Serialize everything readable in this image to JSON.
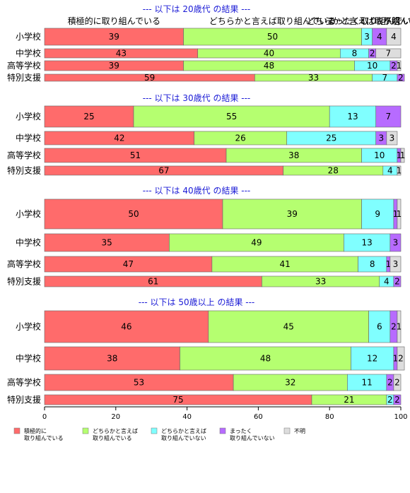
{
  "chart_data": {
    "type": "bar",
    "orientation": "horizontal",
    "stacked": true,
    "xlim": [
      0,
      100
    ],
    "x_ticks": [
      "0",
      "20",
      "40",
      "60",
      "80",
      "100"
    ],
    "top_headers": [
      "積極的に取り組んでいる",
      "どちらかと言えば取り組んでいる",
      "どちらかと言えば取り組んでいない",
      "まったく取り組んでいない",
      "不明"
    ],
    "legend": {
      "placement": "bottom",
      "entries": [
        {
          "label_line1": "積極的に",
          "label_line2": "取り組んでいる"
        },
        {
          "label_line1": "どちらかと言えば",
          "label_line2": "取り組んでいる"
        },
        {
          "label_line1": "どちらかと言えば",
          "label_line2": "取り組んでいない"
        },
        {
          "label_line1": "まったく",
          "label_line2": "取り組んでいない"
        },
        {
          "label_line1": "不明",
          "label_line2": ""
        }
      ]
    },
    "colors": [
      "#ff6b6b",
      "#b5ff70",
      "#80ffff",
      "#b76bff",
      "#dddddd"
    ],
    "groups": [
      {
        "title": "--- 以下は 20歳代 の結果 ---",
        "rows": [
          {
            "label": "小学校",
            "values": [
              39,
              50,
              3,
              4,
              4
            ],
            "value_labels": [
              "39",
              "50",
              "3",
              "4",
              "4"
            ]
          },
          {
            "label": "中学校",
            "values": [
              43,
              40,
              8,
              2,
              7
            ],
            "value_labels": [
              "43",
              "40",
              "8",
              "2",
              "7"
            ]
          },
          {
            "label": "高等学校",
            "values": [
              39,
              48,
              10,
              2,
              1
            ],
            "value_labels": [
              "39",
              "48",
              "10",
              "2",
              "1"
            ]
          },
          {
            "label": "特別支援",
            "values": [
              59,
              33,
              7,
              2,
              0
            ],
            "value_labels": [
              "59",
              "33",
              "7",
              "2",
              ""
            ]
          }
        ]
      },
      {
        "title": "--- 以下は 30歳代 の結果 ---",
        "rows": [
          {
            "label": "小学校",
            "values": [
              25,
              55,
              13,
              7,
              0
            ],
            "value_labels": [
              "25",
              "55",
              "13",
              "7",
              ""
            ]
          },
          {
            "label": "中学校",
            "values": [
              42,
              26,
              25,
              3,
              3
            ],
            "value_labels": [
              "42",
              "26",
              "25",
              "3",
              "3"
            ]
          },
          {
            "label": "高等学校",
            "values": [
              51,
              38,
              10,
              1,
              1
            ],
            "value_labels": [
              "51",
              "38",
              "10",
              "1",
              "1"
            ]
          },
          {
            "label": "特別支援",
            "values": [
              67,
              28,
              4,
              0,
              1
            ],
            "value_labels": [
              "67",
              "28",
              "4",
              "",
              "1"
            ]
          }
        ]
      },
      {
        "title": "--- 以下は 40歳代 の結果 ---",
        "rows": [
          {
            "label": "小学校",
            "values": [
              50,
              39,
              9,
              1,
              1
            ],
            "value_labels": [
              "50",
              "39",
              "9",
              "1",
              "1"
            ]
          },
          {
            "label": "中学校",
            "values": [
              35,
              49,
              13,
              3,
              0
            ],
            "value_labels": [
              "35",
              "49",
              "13",
              "3",
              ""
            ]
          },
          {
            "label": "高等学校",
            "values": [
              47,
              41,
              8,
              1,
              3
            ],
            "value_labels": [
              "47",
              "41",
              "8",
              "1",
              "3"
            ]
          },
          {
            "label": "特別支援",
            "values": [
              61,
              33,
              4,
              2,
              0
            ],
            "value_labels": [
              "61",
              "33",
              "4",
              "2",
              ""
            ]
          }
        ]
      },
      {
        "title": "--- 以下は 50歳以上 の結果 ---",
        "rows": [
          {
            "label": "小学校",
            "values": [
              46,
              45,
              6,
              2,
              1
            ],
            "value_labels": [
              "46",
              "45",
              "6",
              "2",
              "1"
            ]
          },
          {
            "label": "中学校",
            "values": [
              38,
              48,
              12,
              1,
              2
            ],
            "value_labels": [
              "38",
              "48",
              "12",
              "1",
              "2"
            ]
          },
          {
            "label": "高等学校",
            "values": [
              53,
              32,
              11,
              2,
              2
            ],
            "value_labels": [
              "53",
              "32",
              "11",
              "2",
              "2"
            ]
          },
          {
            "label": "特別支援",
            "values": [
              75,
              21,
              2,
              2,
              0
            ],
            "value_labels": [
              "75",
              "21",
              "2",
              "2",
              ""
            ]
          }
        ]
      }
    ]
  }
}
